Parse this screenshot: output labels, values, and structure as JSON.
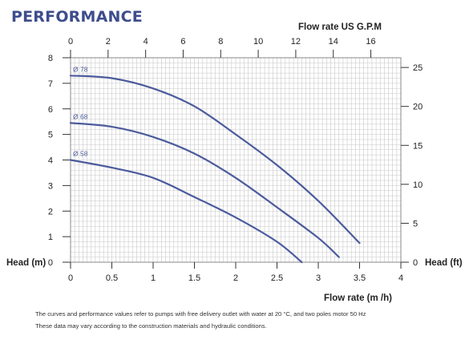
{
  "heading": "PERFORMANCE",
  "notes": [
    "The curves and performance values refer to pumps with free delivery outlet with water at 20 °C, and two poles motor 50 Hz",
    "These data may vary according to the construction materials and hydraulic conditions."
  ],
  "colors": {
    "curve": "#4b5b9c",
    "grid": "#c8c8c8",
    "text": "#222222",
    "heading": "#3e4d8c"
  },
  "chart_data": {
    "type": "line",
    "xlabel": "Flow rate  (m /h)",
    "x2label": "Flow rate US  G.P.M",
    "ylabel": "Head (m)",
    "y2label": "Head (ft)",
    "xlim": [
      0,
      4
    ],
    "ylim": [
      0,
      8
    ],
    "x2lim": [
      0,
      17.6
    ],
    "y2lim": [
      0,
      26.25
    ],
    "x_ticks": [
      "0",
      "0.5",
      "1",
      "1.5",
      "2",
      "2.5",
      "3",
      "3.5",
      "4"
    ],
    "y_ticks": [
      "0",
      "1",
      "2",
      "3",
      "4",
      "5",
      "6",
      "7",
      "8"
    ],
    "x2_ticks": [
      "0",
      "2",
      "4",
      "6",
      "8",
      "10",
      "12",
      "14",
      "16"
    ],
    "y2_ticks": [
      "0",
      "5",
      "10",
      "15",
      "20",
      "25"
    ],
    "grid": true,
    "series": [
      {
        "name": "Ø 78",
        "x": [
          0,
          0.5,
          1.0,
          1.5,
          2.0,
          2.5,
          3.0,
          3.5
        ],
        "y": [
          7.3,
          7.2,
          6.8,
          6.1,
          5.0,
          3.8,
          2.4,
          0.75
        ]
      },
      {
        "name": "Ø 68",
        "x": [
          0,
          0.5,
          1.0,
          1.5,
          2.0,
          2.5,
          3.0,
          3.25
        ],
        "y": [
          5.45,
          5.3,
          4.9,
          4.25,
          3.3,
          2.15,
          0.95,
          0.2
        ]
      },
      {
        "name": "Ø 58",
        "x": [
          0,
          0.5,
          1.0,
          1.5,
          2.0,
          2.5,
          2.8
        ],
        "y": [
          4.0,
          3.7,
          3.3,
          2.55,
          1.75,
          0.8,
          0.0
        ]
      }
    ]
  }
}
